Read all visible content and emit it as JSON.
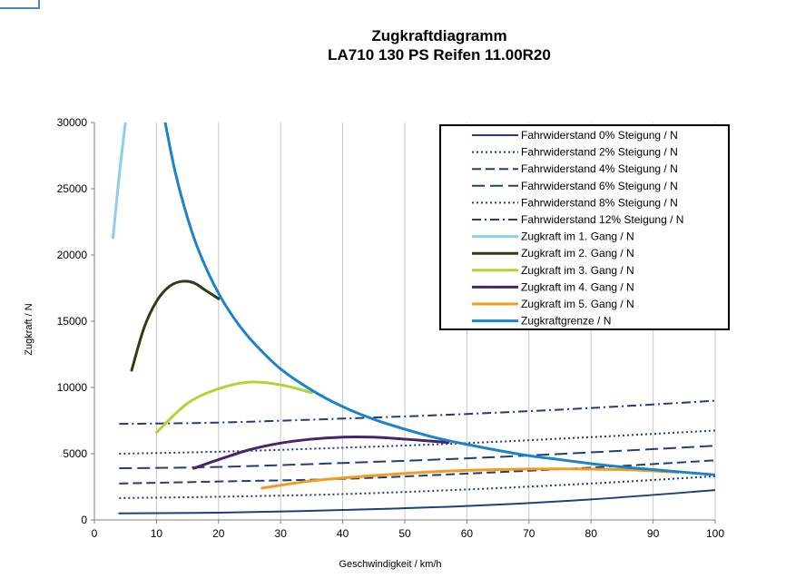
{
  "chart_data": {
    "type": "line",
    "title": [
      "Zugkraftdiagramm",
      "LA710 130 PS Reifen 11.00R20"
    ],
    "xlabel": "Geschwindigkeit / km/h",
    "ylabel": "Zugkraft / N",
    "xlim": [
      0,
      100
    ],
    "ylim": [
      0,
      30000
    ],
    "xticks": [
      "0",
      "10",
      "20",
      "30",
      "40",
      "50",
      "60",
      "70",
      "80",
      "90",
      "100"
    ],
    "yticks": [
      "0",
      "5000",
      "10000",
      "15000",
      "20000",
      "25000",
      "30000"
    ],
    "grid": "vertical",
    "legend_position": "top-right",
    "series": [
      {
        "name": "Fahrwiderstand 0% Steigung / N",
        "color": "#1f3f7a",
        "dash": "solid",
        "x": [
          4,
          20,
          40,
          60,
          80,
          100
        ],
        "y": [
          500,
          550,
          750,
          1050,
          1550,
          2250
        ]
      },
      {
        "name": "Fahrwiderstand 2% Steigung / N",
        "color": "#1f3f7a",
        "dash": "dot",
        "x": [
          4,
          20,
          40,
          60,
          80,
          100
        ],
        "y": [
          1650,
          1750,
          1950,
          2300,
          2750,
          3300
        ]
      },
      {
        "name": "Fahrwiderstand 4% Steigung / N",
        "color": "#1f3f7a",
        "dash": "dash",
        "x": [
          4,
          20,
          40,
          60,
          80,
          100
        ],
        "y": [
          2750,
          2900,
          3100,
          3500,
          3950,
          4500
        ]
      },
      {
        "name": "Fahrwiderstand 6% Steigung / N",
        "color": "#1f3f7a",
        "dash": "longdash",
        "x": [
          4,
          20,
          40,
          60,
          80,
          100
        ],
        "y": [
          3900,
          4000,
          4300,
          4650,
          5100,
          5600
        ]
      },
      {
        "name": "Fahrwiderstand 8% Steigung / N",
        "color": "#1f3f7a",
        "dash": "dot",
        "x": [
          4,
          20,
          40,
          60,
          80,
          100
        ],
        "y": [
          5000,
          5150,
          5450,
          5800,
          6250,
          6750
        ]
      },
      {
        "name": "Fahrwiderstand 12% Steigung / N",
        "color": "#1f3f7a",
        "dash": "dashdot",
        "x": [
          4,
          20,
          40,
          60,
          80,
          100
        ],
        "y": [
          7250,
          7350,
          7650,
          8000,
          8450,
          9000
        ]
      },
      {
        "name": "Zugkraft im 1. Gang / N",
        "color": "#8ecbf0",
        "dash": "solid",
        "x": [
          3,
          4,
          5
        ],
        "y": [
          21300,
          26000,
          30000
        ]
      },
      {
        "name": "Zugkraft im 2. Gang / N",
        "color": "#2d3d14",
        "dash": "solid",
        "x": [
          6,
          8,
          10,
          12,
          14,
          16,
          18,
          20
        ],
        "y": [
          11300,
          14500,
          16500,
          17600,
          18000,
          17900,
          17300,
          16700
        ]
      },
      {
        "name": "Zugkraft im 3. Gang / N",
        "color": "#b4d235",
        "dash": "solid",
        "x": [
          10,
          15,
          20,
          25,
          30,
          35
        ],
        "y": [
          6600,
          8800,
          9900,
          10400,
          10200,
          9600
        ]
      },
      {
        "name": "Zugkraft im 4. Gang / N",
        "color": "#48236e",
        "dash": "solid",
        "x": [
          16,
          20,
          25,
          30,
          35,
          40,
          45,
          50,
          57
        ],
        "y": [
          3900,
          4550,
          5300,
          5800,
          6100,
          6250,
          6250,
          6100,
          5850
        ]
      },
      {
        "name": "Zugkraft im 5. Gang / N",
        "color": "#f39a1f",
        "dash": "solid",
        "x": [
          27,
          35,
          45,
          55,
          65,
          75,
          85,
          94
        ],
        "y": [
          2400,
          2950,
          3350,
          3650,
          3800,
          3850,
          3800,
          3600
        ]
      },
      {
        "name": "Zugkraftgrenze / N",
        "color": "#1a83cc",
        "dash": "solid",
        "x": [
          11.4,
          13,
          15,
          17,
          20,
          23,
          26,
          30,
          35,
          40,
          45,
          50,
          55,
          60,
          65,
          70,
          75,
          80,
          85,
          90,
          95,
          100
        ],
        "y": [
          30000,
          26300,
          22800,
          20100,
          17100,
          14900,
          13200,
          11400,
          9800,
          8550,
          7600,
          6850,
          6200,
          5700,
          5250,
          4850,
          4550,
          4250,
          4000,
          3800,
          3600,
          3400
        ]
      }
    ]
  }
}
